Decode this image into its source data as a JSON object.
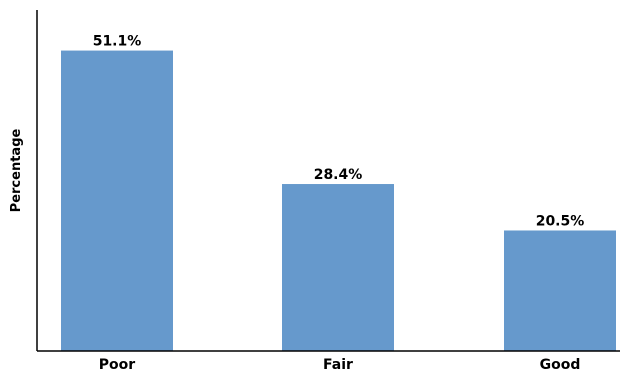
{
  "chart_data": {
    "type": "bar",
    "categories": [
      "Poor",
      "Fair",
      "Good"
    ],
    "values": [
      51.1,
      28.4,
      20.5
    ],
    "value_labels": [
      "51.1%",
      "28.4%",
      "20.5%"
    ],
    "title": "",
    "xlabel": "",
    "ylabel": "Percentage",
    "ylim": [
      0,
      58
    ],
    "grid": false,
    "colors": {
      "bar": "#6699cc",
      "axis": "#000000",
      "text": "#000000"
    }
  }
}
